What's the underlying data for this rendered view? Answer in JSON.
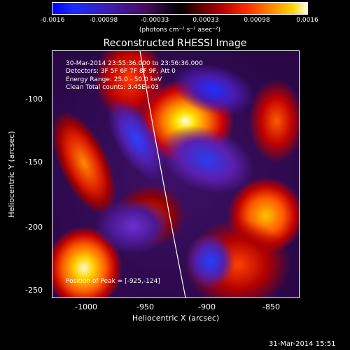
{
  "colorbar": {
    "ticks": [
      "-0.0016",
      "-0.00098",
      "-0.00033",
      "0.00033",
      "0.00098",
      "0.0016"
    ],
    "units": "(photons cm⁻² s⁻¹ asec⁻²)"
  },
  "plot": {
    "title": "Reconstructed RHESSI Image",
    "info": {
      "time": "30-Mar-2014 23:55:36.000 to 23:56:36.000",
      "detectors": "Detectors: 3F 5F 6F 7F 8F 9F, Att 0",
      "energy": "Energy Range: 25.0 - 50.0 keV",
      "clean": "Clean    Total counts: 3.45E+03"
    },
    "peak": "Position of Peak = [-925,-124]",
    "x_ticks": [
      "-1000",
      "-950",
      "-900",
      "-850"
    ],
    "y_ticks": [
      "-100",
      "-150",
      "-200",
      "-250"
    ],
    "xlabel": "Heliocentric X (arcsec)",
    "ylabel": "Heliocentric Y (arcsec)"
  },
  "datestamp": "31-Mar-2014 15:51",
  "chart_data": {
    "type": "heatmap",
    "title": "Reconstructed RHESSI Image",
    "xlabel": "Heliocentric X (arcsec)",
    "ylabel": "Heliocentric Y (arcsec)",
    "xlim": [
      -1028,
      -832
    ],
    "ylim": [
      -255,
      -59
    ],
    "x_ticks": [
      -1000,
      -950,
      -900,
      -850
    ],
    "y_ticks": [
      -100,
      -150,
      -200,
      -250
    ],
    "colorbar_range": [
      -0.0016,
      0.0016
    ],
    "colorbar_ticks": [
      -0.0016,
      -0.00098,
      -0.00033,
      0.00033,
      0.00098,
      0.0016
    ],
    "colorbar_units": "(photons cm⁻² s⁻¹ asec⁻²)",
    "peak_position": [
      -925,
      -124
    ],
    "colors": {
      "negative": "#0000ff",
      "zero": "#000000",
      "positive": "#ffffe0"
    }
  }
}
